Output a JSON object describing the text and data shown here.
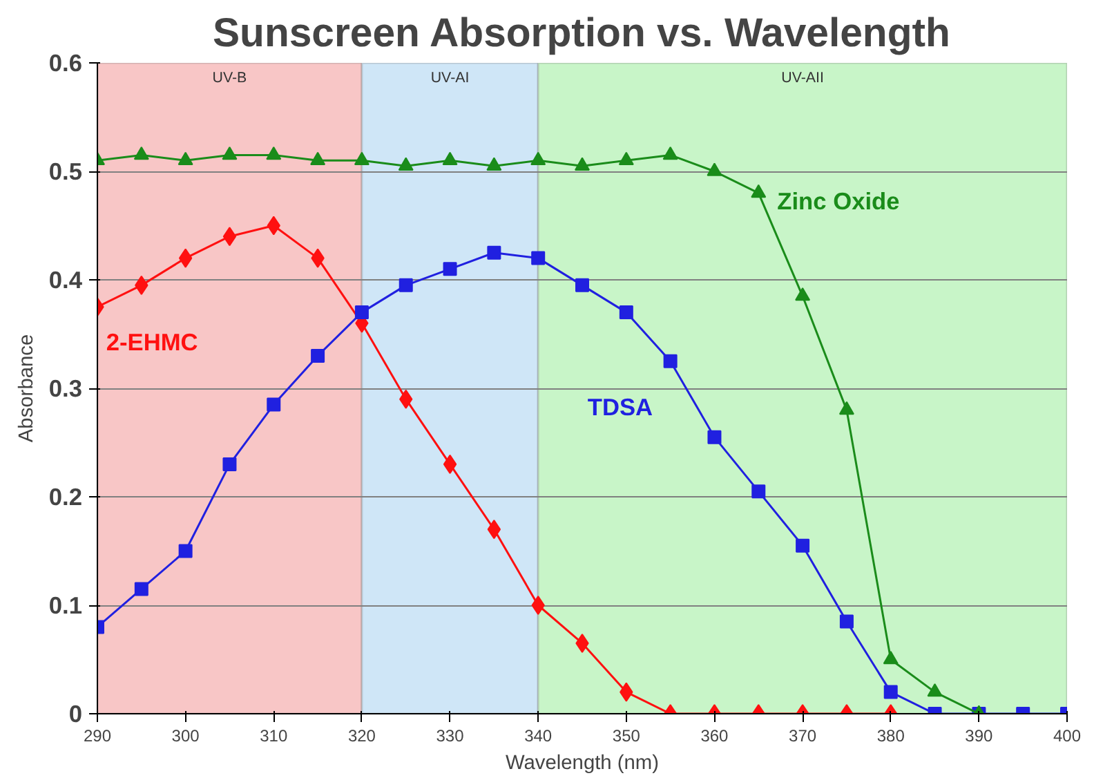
{
  "chart_data": {
    "type": "line",
    "title": "Sunscreen Absorption vs. Wavelength",
    "xlabel": "Wavelength (nm)",
    "ylabel": "Absorbance",
    "x": [
      290,
      295,
      300,
      305,
      310,
      315,
      320,
      325,
      330,
      335,
      340,
      345,
      350,
      355,
      360,
      365,
      370,
      375,
      380,
      385,
      390,
      395,
      400
    ],
    "series": [
      {
        "name": "2-EHMC",
        "color": "#ff1010",
        "marker": "diamond",
        "values": [
          0.375,
          0.395,
          0.42,
          0.44,
          0.45,
          0.42,
          0.36,
          0.29,
          0.23,
          0.17,
          0.1,
          0.065,
          0.02,
          0,
          0,
          0,
          0,
          0,
          0,
          null,
          null,
          null,
          null
        ]
      },
      {
        "name": "TDSA",
        "color": "#2020e0",
        "marker": "square",
        "values": [
          0.08,
          0.115,
          0.15,
          0.23,
          0.285,
          0.33,
          0.37,
          0.395,
          0.41,
          0.425,
          0.42,
          0.395,
          0.37,
          0.325,
          0.255,
          0.205,
          0.155,
          0.085,
          0.02,
          0,
          0,
          0,
          0
        ]
      },
      {
        "name": "Zinc Oxide",
        "color": "#1a8c1a",
        "marker": "triangle",
        "values": [
          0.51,
          0.515,
          0.51,
          0.515,
          0.515,
          0.51,
          0.51,
          0.505,
          0.51,
          0.505,
          0.51,
          0.505,
          0.51,
          0.515,
          0.5,
          0.48,
          0.385,
          0.28,
          0.05,
          0.02,
          0,
          null,
          null
        ]
      }
    ],
    "bands": [
      {
        "axis": "x",
        "from": 290,
        "to": 320,
        "label": "UV-B",
        "color": "#f8c6c6"
      },
      {
        "axis": "x",
        "from": 320,
        "to": 340,
        "label": "UV-AI",
        "color": "#cfe6f7"
      },
      {
        "axis": "x",
        "from": 340,
        "to": 400,
        "label": "UV-AII",
        "color": "#c8f5c8"
      }
    ],
    "xlim": [
      290,
      400
    ],
    "ylim": [
      0,
      0.6
    ],
    "xticks": [
      290,
      300,
      310,
      320,
      330,
      340,
      350,
      360,
      370,
      380,
      390,
      400
    ],
    "yticks": [
      {
        "value": 0,
        "label": "0"
      },
      {
        "value": 0.1,
        "label": "0.1"
      },
      {
        "value": 0.2,
        "label": "0.2"
      },
      {
        "value": 0.3,
        "label": "0.3"
      },
      {
        "value": 0.4,
        "label": "0.4"
      },
      {
        "value": 0.5,
        "label": "0.5"
      },
      {
        "value": 0.6,
        "label": "0.6"
      }
    ],
    "grid": "y",
    "line_style": "solid"
  }
}
